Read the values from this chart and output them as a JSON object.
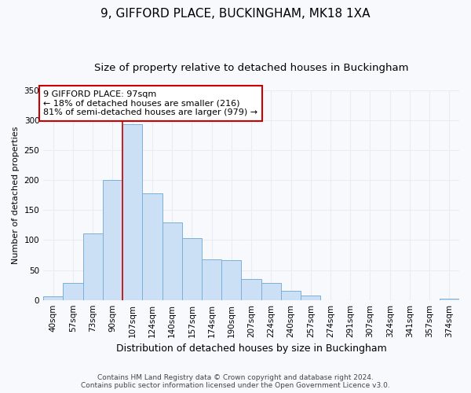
{
  "title": "9, GIFFORD PLACE, BUCKINGHAM, MK18 1XA",
  "subtitle": "Size of property relative to detached houses in Buckingham",
  "xlabel": "Distribution of detached houses by size in Buckingham",
  "ylabel": "Number of detached properties",
  "bar_labels": [
    "40sqm",
    "57sqm",
    "73sqm",
    "90sqm",
    "107sqm",
    "124sqm",
    "140sqm",
    "157sqm",
    "174sqm",
    "190sqm",
    "207sqm",
    "224sqm",
    "240sqm",
    "257sqm",
    "274sqm",
    "291sqm",
    "307sqm",
    "324sqm",
    "341sqm",
    "357sqm",
    "374sqm"
  ],
  "bar_values": [
    6,
    28,
    111,
    200,
    293,
    178,
    130,
    103,
    68,
    67,
    35,
    28,
    15,
    8,
    0,
    0,
    0,
    0,
    0,
    0,
    2
  ],
  "bar_color": "#cce0f5",
  "bar_edge_color": "#7ab0d8",
  "property_line_color": "#cc0000",
  "property_line_x": 3.5,
  "ylim": [
    0,
    350
  ],
  "yticks": [
    0,
    50,
    100,
    150,
    200,
    250,
    300,
    350
  ],
  "annotation_text": "9 GIFFORD PLACE: 97sqm\n← 18% of detached houses are smaller (216)\n81% of semi-detached houses are larger (979) →",
  "annotation_box_facecolor": "#ffffff",
  "annotation_box_edgecolor": "#cc0000",
  "fig_facecolor": "#f7f9fc",
  "axes_facecolor": "#f7f9fc",
  "grid_color": "#e8edf5",
  "title_fontsize": 11,
  "subtitle_fontsize": 9.5,
  "xlabel_fontsize": 9,
  "ylabel_fontsize": 8,
  "tick_fontsize": 7.5,
  "annotation_fontsize": 8,
  "footer_fontsize": 6.5,
  "footer_line1": "Contains HM Land Registry data © Crown copyright and database right 2024.",
  "footer_line2": "Contains public sector information licensed under the Open Government Licence v3.0."
}
